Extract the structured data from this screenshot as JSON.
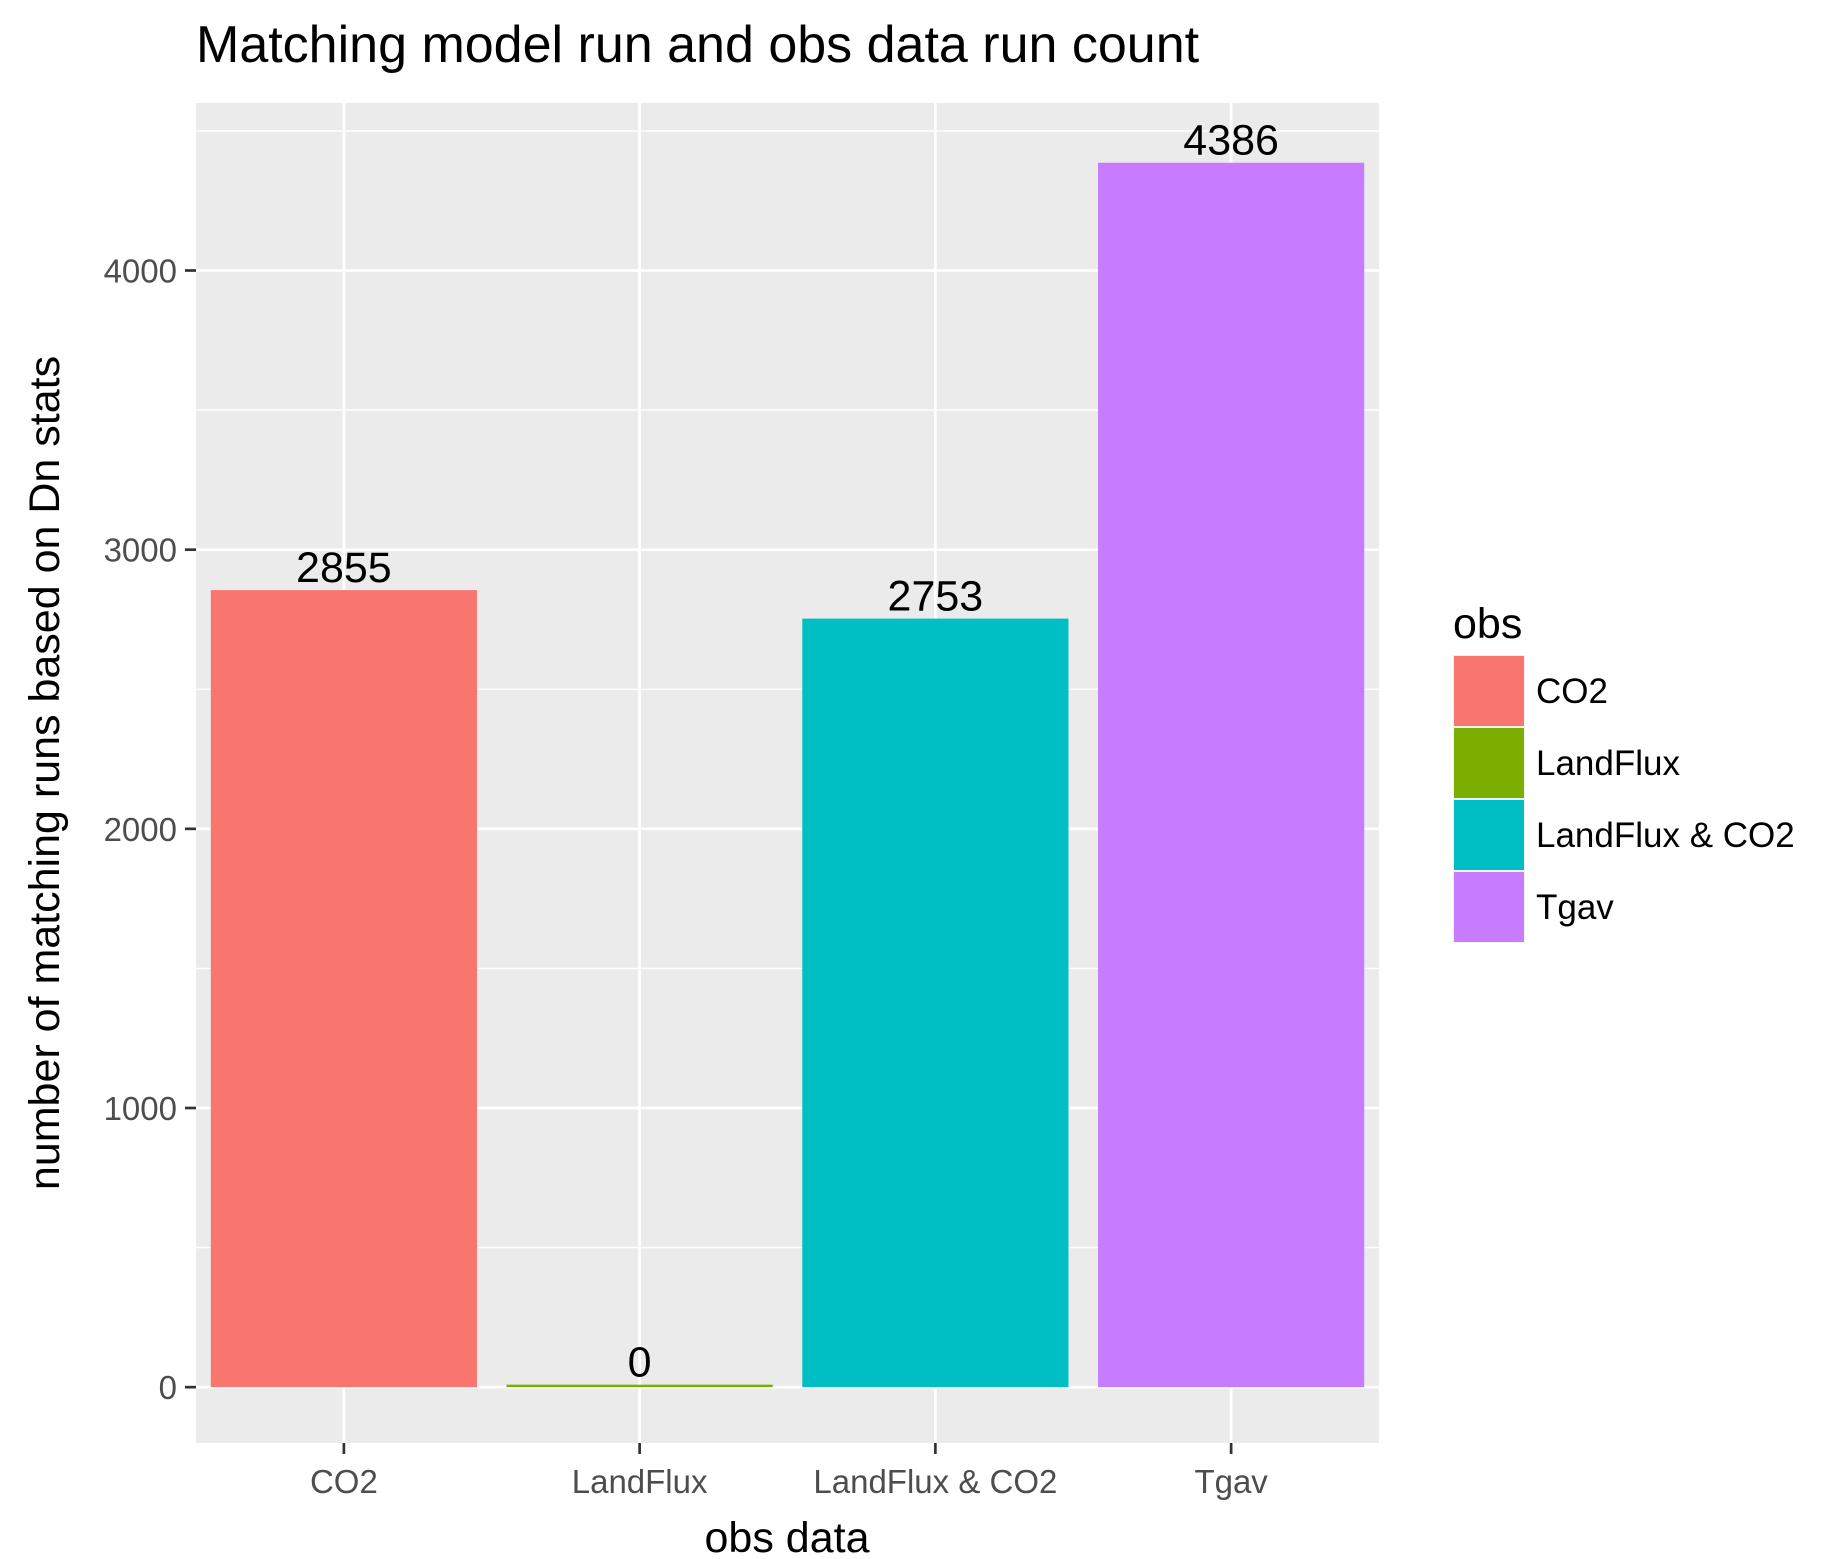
{
  "chart_data": {
    "type": "bar",
    "title": "Matching model run and obs data run count",
    "xlabel": "obs data",
    "ylabel": "number of matching runs based on Dn stats",
    "categories": [
      "CO2",
      "LandFlux",
      "LandFlux & CO2",
      "Tgav"
    ],
    "values": [
      2855,
      0,
      2753,
      4386
    ],
    "data_labels": [
      "2855",
      "0",
      "2753",
      "4386"
    ],
    "colors": [
      "#F8766D",
      "#7CAE00",
      "#00BFC4",
      "#C77CFF"
    ],
    "ylim": [
      -200,
      4600
    ],
    "yticks": [
      0,
      1000,
      2000,
      3000,
      4000
    ],
    "ytick_labels": [
      "0",
      "1000",
      "2000",
      "3000",
      "4000"
    ],
    "grid": true,
    "panel_background": "#EBEBEB",
    "legend": {
      "title": "obs",
      "position": "right",
      "entries": [
        "CO2",
        "LandFlux",
        "LandFlux & CO2",
        "Tgav"
      ]
    }
  }
}
